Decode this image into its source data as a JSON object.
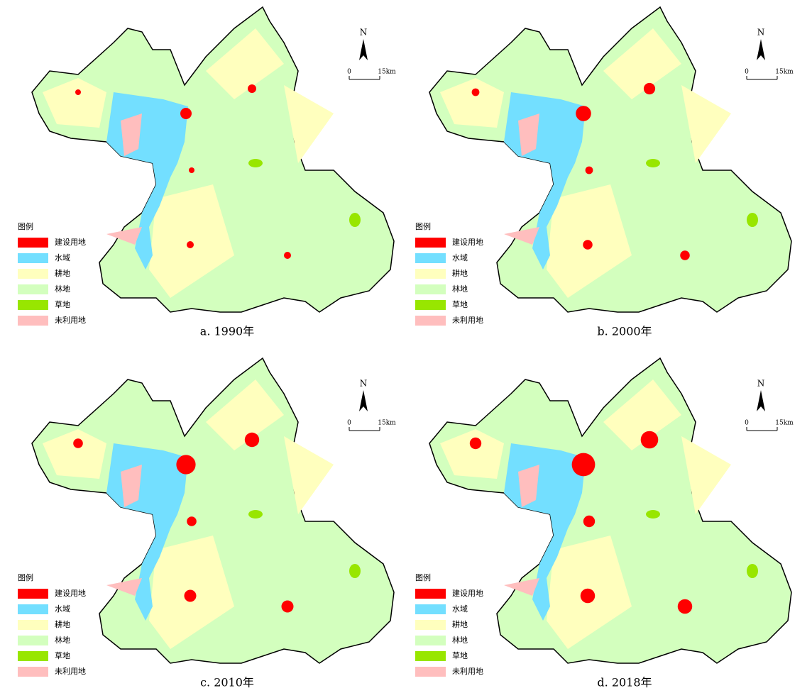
{
  "legend": {
    "title": "图例",
    "items": [
      {
        "label": "建设用地",
        "color": "#ff0000"
      },
      {
        "label": "水域",
        "color": "#73dfff"
      },
      {
        "label": "耕地",
        "color": "#ffffbe"
      },
      {
        "label": "林地",
        "color": "#d3ffbe"
      },
      {
        "label": "草地",
        "color": "#98e600"
      },
      {
        "label": "未利用地",
        "color": "#ffbebe"
      }
    ]
  },
  "north": "N",
  "scale": {
    "start": "0",
    "end": "15km"
  },
  "panels": [
    {
      "caption": "a. 1990年"
    },
    {
      "caption": "b. 2000年"
    },
    {
      "caption": "c. 2010年"
    },
    {
      "caption": "d. 2018年"
    }
  ]
}
